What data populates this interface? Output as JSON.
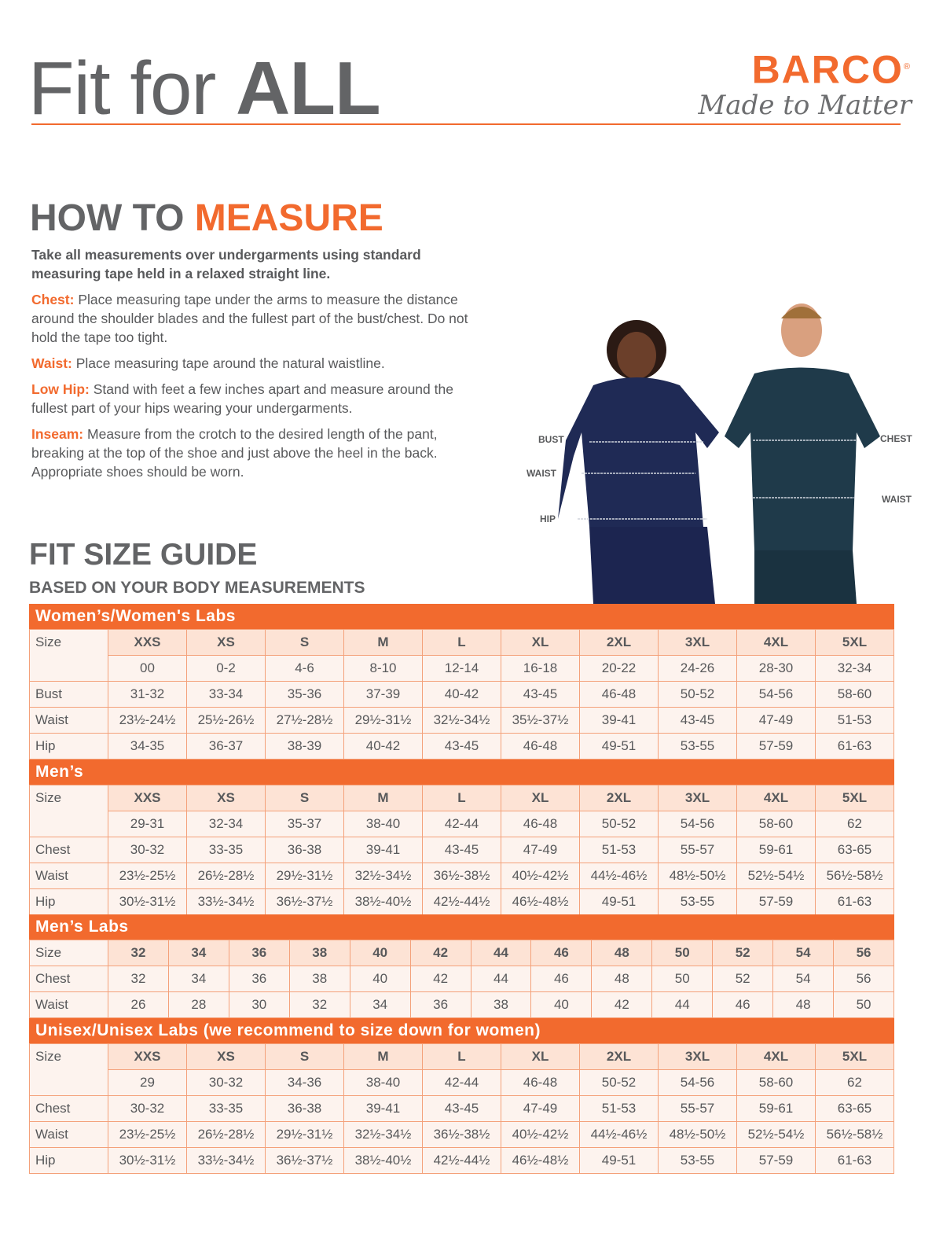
{
  "header": {
    "title_light": "Fit for ",
    "title_bold": "ALL",
    "brand": "BARCO",
    "registered": "®",
    "tagline": "Made to Matter"
  },
  "measure": {
    "title_a": "HOW TO ",
    "title_b": "MEASURE",
    "lead": "Take all measurements over undergarments using standard measuring tape held in a relaxed straight line.",
    "items": [
      {
        "k": "Chest:",
        "t": "Place measuring tape under the arms to measure the distance around the shoulder blades and the fullest part of the bust/chest. Do not hold the tape too tight."
      },
      {
        "k": "Waist:",
        "t": "Place measuring tape around the natural waistline."
      },
      {
        "k": "Low Hip:",
        "t": "Stand with feet a few inches apart and measure around the fullest part of your hips wearing your undergarments."
      },
      {
        "k": "Inseam:",
        "t": "Measure from the crotch to the desired length of the pant, breaking at the top of the shoe and just above the heel in the back. Appropriate shoes should be worn."
      }
    ]
  },
  "photo_labels": {
    "bust": "BUST",
    "waist_w": "WAIST",
    "hip": "HIP",
    "chest": "CHEST",
    "waist_m": "WAIST"
  },
  "guide": {
    "title": "FIT SIZE GUIDE",
    "subtitle": "BASED ON YOUR BODY MEASUREMENTS"
  },
  "colors": {
    "accent": "#f26a2e",
    "text": "#58595b",
    "cell": "#fdf3ee",
    "size_cell": "#fde3d5"
  },
  "tables": [
    {
      "title": "Women’s/Women's Labs",
      "sizes": [
        "XXS",
        "XS",
        "S",
        "M",
        "L",
        "XL",
        "2XL",
        "3XL",
        "4XL",
        "5XL"
      ],
      "numeric": [
        "00",
        "0-2",
        "4-6",
        "8-10",
        "12-14",
        "16-18",
        "20-22",
        "24-26",
        "28-30",
        "32-34"
      ],
      "rows": [
        {
          "label": "Bust",
          "values": [
            "31-32",
            "33-34",
            "35-36",
            "37-39",
            "40-42",
            "43-45",
            "46-48",
            "50-52",
            "54-56",
            "58-60"
          ]
        },
        {
          "label": "Waist",
          "values": [
            "23½-24½",
            "25½-26½",
            "27½-28½",
            "29½-31½",
            "32½-34½",
            "35½-37½",
            "39-41",
            "43-45",
            "47-49",
            "51-53"
          ]
        },
        {
          "label": "Hip",
          "values": [
            "34-35",
            "36-37",
            "38-39",
            "40-42",
            "43-45",
            "46-48",
            "49-51",
            "53-55",
            "57-59",
            "61-63"
          ]
        }
      ]
    },
    {
      "title": "Men’s",
      "sizes": [
        "XXS",
        "XS",
        "S",
        "M",
        "L",
        "XL",
        "2XL",
        "3XL",
        "4XL",
        "5XL"
      ],
      "numeric": [
        "29-31",
        "32-34",
        "35-37",
        "38-40",
        "42-44",
        "46-48",
        "50-52",
        "54-56",
        "58-60",
        "62"
      ],
      "rows": [
        {
          "label": "Chest",
          "values": [
            "30-32",
            "33-35",
            "36-38",
            "39-41",
            "43-45",
            "47-49",
            "51-53",
            "55-57",
            "59-61",
            "63-65"
          ]
        },
        {
          "label": "Waist",
          "values": [
            "23½-25½",
            "26½-28½",
            "29½-31½",
            "32½-34½",
            "36½-38½",
            "40½-42½",
            "44½-46½",
            "48½-50½",
            "52½-54½",
            "56½-58½"
          ]
        },
        {
          "label": "Hip",
          "values": [
            "30½-31½",
            "33½-34½",
            "36½-37½",
            "38½-40½",
            "42½-44½",
            "46½-48½",
            "49-51",
            "53-55",
            "57-59",
            "61-63"
          ]
        }
      ]
    },
    {
      "title": "Men’s Labs",
      "sizes": [
        "32",
        "34",
        "36",
        "38",
        "40",
        "42",
        "44",
        "46",
        "48",
        "50",
        "52",
        "54",
        "56"
      ],
      "rows": [
        {
          "label": "Chest",
          "values": [
            "32",
            "34",
            "36",
            "38",
            "40",
            "42",
            "44",
            "46",
            "48",
            "50",
            "52",
            "54",
            "56"
          ]
        },
        {
          "label": "Waist",
          "values": [
            "26",
            "28",
            "30",
            "32",
            "34",
            "36",
            "38",
            "40",
            "42",
            "44",
            "46",
            "48",
            "50"
          ]
        }
      ]
    },
    {
      "title": "Unisex/Unisex Labs (we recommend to size down for women)",
      "sizes": [
        "XXS",
        "XS",
        "S",
        "M",
        "L",
        "XL",
        "2XL",
        "3XL",
        "4XL",
        "5XL"
      ],
      "numeric": [
        "29",
        "30-32",
        "34-36",
        "38-40",
        "42-44",
        "46-48",
        "50-52",
        "54-56",
        "58-60",
        "62"
      ],
      "rows": [
        {
          "label": "Chest",
          "values": [
            "30-32",
            "33-35",
            "36-38",
            "39-41",
            "43-45",
            "47-49",
            "51-53",
            "55-57",
            "59-61",
            "63-65"
          ]
        },
        {
          "label": "Waist",
          "values": [
            "23½-25½",
            "26½-28½",
            "29½-31½",
            "32½-34½",
            "36½-38½",
            "40½-42½",
            "44½-46½",
            "48½-50½",
            "52½-54½",
            "56½-58½"
          ]
        },
        {
          "label": "Hip",
          "values": [
            "30½-31½",
            "33½-34½",
            "36½-37½",
            "38½-40½",
            "42½-44½",
            "46½-48½",
            "49-51",
            "53-55",
            "57-59",
            "61-63"
          ]
        }
      ]
    }
  ],
  "size_label": "Size"
}
